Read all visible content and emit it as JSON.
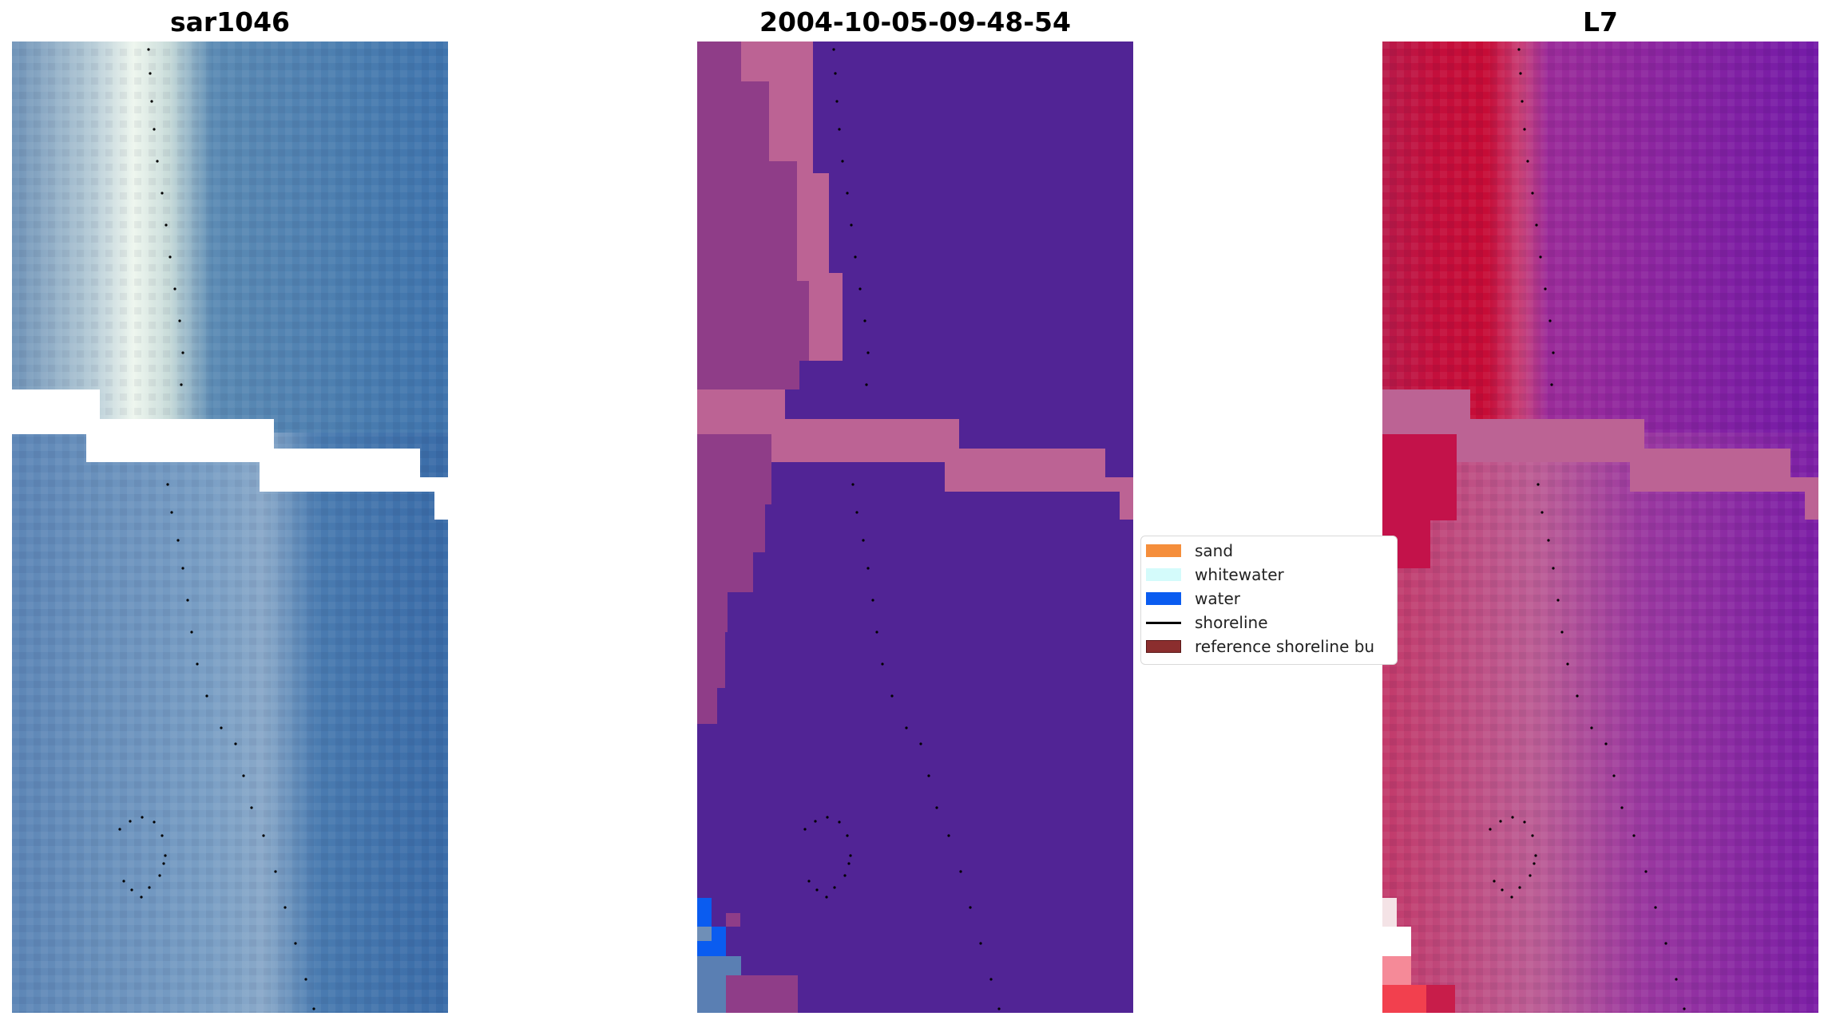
{
  "panels": [
    {
      "title": "sar1046"
    },
    {
      "title": "2004-10-05-09-48-54"
    },
    {
      "title": "L7"
    }
  ],
  "legend": {
    "items": [
      {
        "label": "sand",
        "color": "#f58e3b",
        "kind": "patch"
      },
      {
        "label": "whitewater",
        "color": "#d4fbfb",
        "kind": "patch"
      },
      {
        "label": "water",
        "color": "#0a5cf0",
        "kind": "patch"
      },
      {
        "label": "shoreline",
        "color": "#000000",
        "kind": "line"
      },
      {
        "label": "reference shoreline bu",
        "color": "#8b2e2e",
        "kind": "patch"
      }
    ]
  },
  "colors": {
    "rgb_water": "#3f74ad",
    "rgb_beach": "#e6f2ec",
    "class_water": "#512495",
    "class_sand_overlay": "#bc6394",
    "false_color_land": "#c40f3c",
    "false_color_water": "#7a1ca6",
    "nodata_band": "#bc6394"
  }
}
